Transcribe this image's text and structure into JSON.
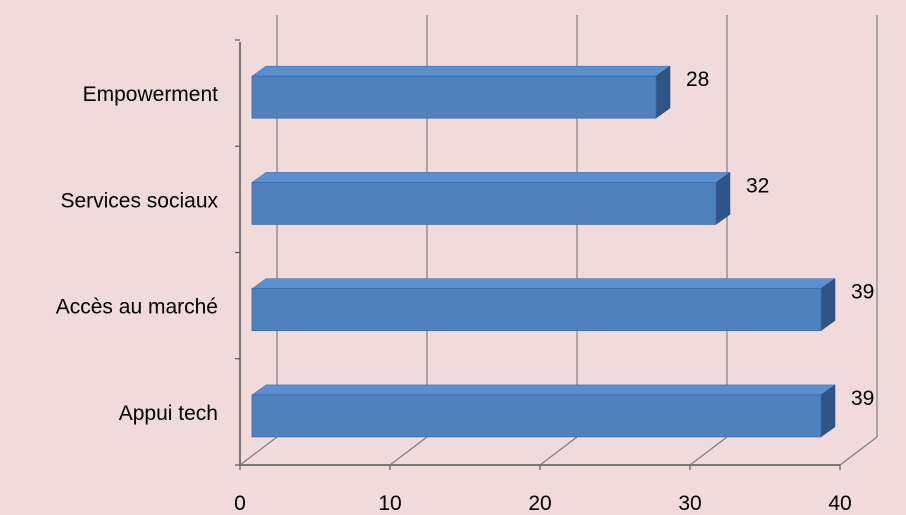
{
  "chart_data": {
    "type": "bar",
    "orientation": "horizontal",
    "style": "3d",
    "categories": [
      "Appui tech",
      "Accès au marché",
      "Services sociaux",
      "Empowerment"
    ],
    "values": [
      39,
      39,
      32,
      28
    ],
    "data_labels": [
      "39",
      "39",
      "32",
      "28"
    ],
    "xlim": [
      0,
      40
    ],
    "x_ticks": [
      0,
      10,
      20,
      30,
      40
    ],
    "x_tick_labels": [
      "0",
      "10",
      "20",
      "30",
      "40"
    ],
    "grid": true,
    "legend": "none",
    "colors": {
      "bar_front": "#4f81bd",
      "bar_top": "#5b8fd0",
      "bar_side": "#2f5486",
      "background": "#f0dada",
      "grid": "#7f7f7f",
      "axis": "#595959"
    }
  }
}
